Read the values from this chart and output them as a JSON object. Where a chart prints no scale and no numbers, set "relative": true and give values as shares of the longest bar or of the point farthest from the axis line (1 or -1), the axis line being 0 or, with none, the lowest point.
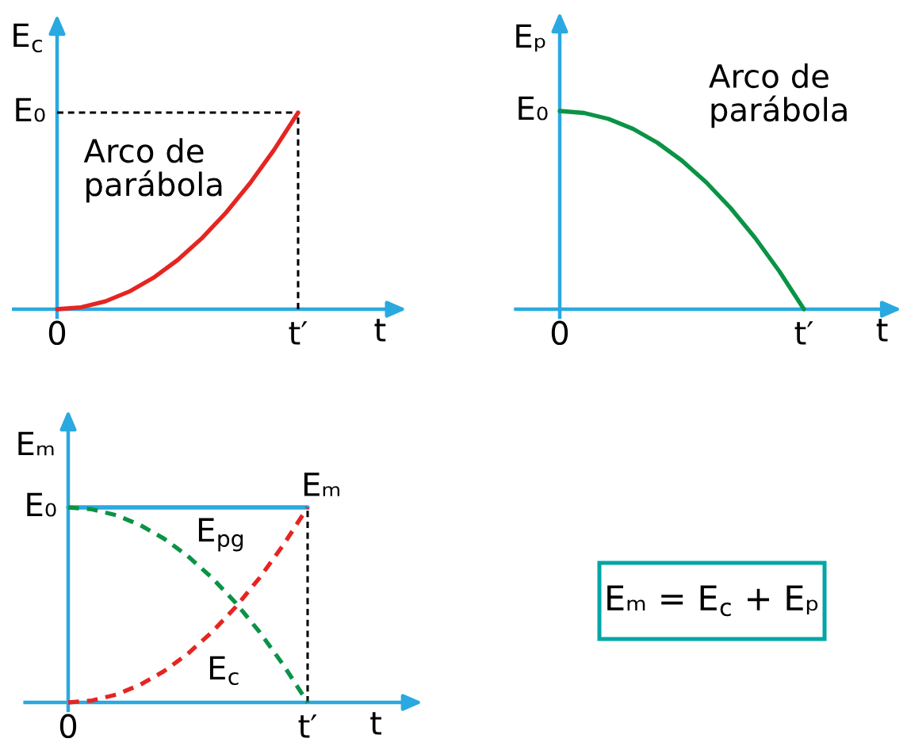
{
  "chart_data": [
    {
      "type": "line",
      "relative": true,
      "xlabel": "t",
      "ylabel": "E$_{c}$",
      "annotations": [
        "Arco de\nparábola",
        "E₀"
      ],
      "categories": [
        "0",
        null,
        null,
        null,
        null,
        null,
        null,
        null,
        null,
        null,
        "t′"
      ],
      "ref_lines": [
        {
          "axis": "y",
          "value": 1,
          "color": "#000000",
          "line_style": "dashed"
        },
        {
          "axis": "x",
          "value": "t′",
          "color": "#000000",
          "line_style": "dashed"
        }
      ],
      "series": [
        {
          "color": "#e52521",
          "values": [
            0,
            0.01,
            0.04,
            0.09,
            0.16,
            0.25,
            0.36,
            0.49,
            0.64,
            0.81,
            1
          ]
        }
      ]
    },
    {
      "type": "line",
      "relative": true,
      "xlabel": "t",
      "ylabel": "Eₚ",
      "annotations": [
        "Arco de\nparábola",
        "E₀"
      ],
      "categories": [
        "0",
        null,
        null,
        null,
        null,
        null,
        null,
        null,
        null,
        null,
        "t′"
      ],
      "series": [
        {
          "color": "#0a9345",
          "values": [
            1,
            0.99,
            0.96,
            0.91,
            0.84,
            0.75,
            0.64,
            0.51,
            0.36,
            0.19,
            0
          ]
        }
      ]
    },
    {
      "type": "line",
      "relative": true,
      "xlabel": "t",
      "ylabel": "Eₘ",
      "annotations": [
        "E₀"
      ],
      "categories": [
        "0",
        null,
        null,
        null,
        null,
        null,
        null,
        null,
        null,
        null,
        "t′"
      ],
      "ref_lines": [
        {
          "axis": "x",
          "value": "t′",
          "color": "#000000",
          "line_style": "dashed"
        }
      ],
      "series": [
        {
          "name": "Eₘ",
          "color": "#29a9e0",
          "values": [
            1,
            1,
            1,
            1,
            1,
            1,
            1,
            1,
            1,
            1,
            1
          ]
        },
        {
          "name": "E$_{pg}$",
          "color": "#0a9345",
          "line_style": "dashed",
          "values": [
            1,
            0.99,
            0.96,
            0.91,
            0.84,
            0.75,
            0.64,
            0.51,
            0.36,
            0.19,
            0
          ]
        },
        {
          "name": "E$_{c}$",
          "color": "#e52521",
          "line_style": "dashed",
          "values": [
            0,
            0.01,
            0.04,
            0.09,
            0.16,
            0.25,
            0.36,
            0.49,
            0.64,
            0.81,
            1
          ]
        }
      ]
    },
    {
      "type": "other",
      "annotations": [
        "Eₘ = E$_{c}$ + Eₚ"
      ]
    }
  ]
}
